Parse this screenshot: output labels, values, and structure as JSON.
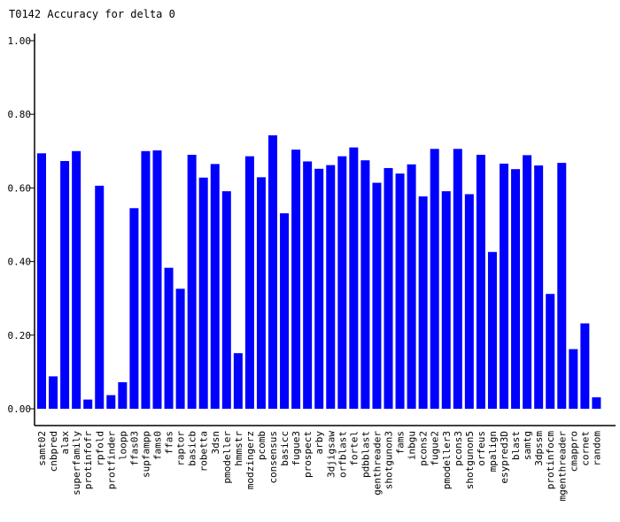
{
  "chart_data": {
    "type": "bar",
    "title": "T0142 Accuracy for delta 0",
    "xlabel": "",
    "ylabel": "",
    "ylim": [
      0,
      1.0
    ],
    "y_ticks": [
      "0.00",
      "0.20",
      "0.40",
      "0.60",
      "0.80",
      "1.00"
    ],
    "grid": false,
    "bar_color": "#0000ff",
    "categories": [
      "samt02",
      "cnbpred",
      "alax",
      "superfamily",
      "protinfofr",
      "rpfold",
      "protfinder",
      "loopp",
      "ffas03",
      "supfampp",
      "fams0",
      "ffas",
      "raptor",
      "basicb",
      "robetta",
      "3dsn",
      "pmodeller",
      "hmmstr",
      "modzingerz",
      "pcomb",
      "consensus",
      "basicc",
      "fugue3",
      "prospect",
      "arby",
      "3djigsaw",
      "orfblast",
      "fortel",
      "pdbblast",
      "genthreader",
      "shotgunon3",
      "fams",
      "inbgu",
      "pcons2",
      "fugue2",
      "pmodeller3",
      "pcons3",
      "shotgunon5",
      "orfeus",
      "mpalign",
      "esypred3D",
      "blast",
      "samtg",
      "3dpssm",
      "protinfocm",
      "mgenthreader",
      "cmappro",
      "cornet",
      "random"
    ],
    "values": [
      0.694,
      0.088,
      0.673,
      0.7,
      0.025,
      0.606,
      0.037,
      0.072,
      0.545,
      0.7,
      0.702,
      0.383,
      0.326,
      0.69,
      0.628,
      0.665,
      0.591,
      0.151,
      0.686,
      0.629,
      0.743,
      0.531,
      0.704,
      0.672,
      0.652,
      0.662,
      0.686,
      0.71,
      0.675,
      0.614,
      0.654,
      0.639,
      0.664,
      0.577,
      0.706,
      0.591,
      0.706,
      0.583,
      0.69,
      0.426,
      0.666,
      0.651,
      0.689,
      0.661,
      0.312,
      0.668,
      0.162,
      0.232,
      0.031
    ]
  }
}
